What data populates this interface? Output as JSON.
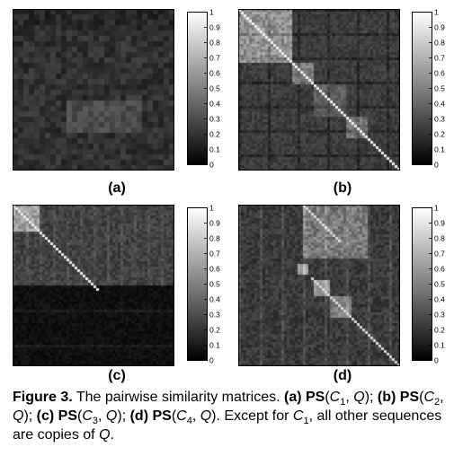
{
  "panels": [
    {
      "id": "a",
      "label": "(a)"
    },
    {
      "id": "b",
      "label": "(b)"
    },
    {
      "id": "c",
      "label": "(c)"
    },
    {
      "id": "d",
      "label": "(d)"
    }
  ],
  "colorbar": {
    "ticks": [
      "0",
      "0.1",
      "0.2",
      "0.3",
      "0.4",
      "0.5",
      "0.6",
      "0.7",
      "0.8",
      "0.9",
      "1"
    ],
    "min": 0,
    "max": 1
  },
  "caption": {
    "lead": "Figure 3.",
    "t1": " The pairwise similarity matrices. ",
    "a_label": "(a) ",
    "ps": "PS",
    "open": "(",
    "c": "C",
    "sub1": "1",
    "sub2": "2",
    "sub3": "3",
    "sub4": "4",
    "comma_q_close": ", Q)",
    "sep": "; ",
    "b_label": "(b) ",
    "c_label": "(c) ",
    "d_label": "(d) ",
    "t_end": ". Except for ",
    "t_final": ", all other sequences are copies of ",
    "q": "Q",
    "period": "."
  }
}
